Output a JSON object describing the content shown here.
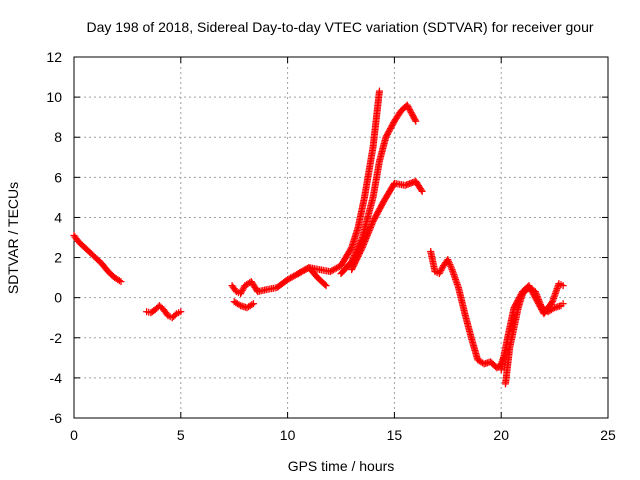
{
  "chart_data": {
    "type": "scatter",
    "title": "Day 198 of 2018, Sidereal Day-to-day VTEC variation (SDTVAR) for receiver gour",
    "xlabel": "GPS time / hours",
    "ylabel": "SDTVAR / TECUs",
    "xlim": [
      0,
      25
    ],
    "ylim": [
      -6,
      12
    ],
    "xticks": [
      0,
      5,
      10,
      15,
      20,
      25
    ],
    "yticks": [
      -6,
      -4,
      -2,
      0,
      2,
      4,
      6,
      8,
      10,
      12
    ],
    "grid": true,
    "marker": "+",
    "color": "#ff0000",
    "series": [
      {
        "name": "SDTVAR",
        "segments": [
          {
            "x": [
              0.0,
              0.2,
              0.5,
              0.8,
              1.0,
              1.3,
              1.6,
              1.9,
              2.2
            ],
            "y": [
              3.1,
              2.8,
              2.5,
              2.2,
              2.0,
              1.7,
              1.3,
              1.0,
              0.8
            ]
          },
          {
            "x": [
              3.4,
              3.6,
              3.8,
              4.0,
              4.2,
              4.4,
              4.6,
              4.8,
              5.0
            ],
            "y": [
              -0.7,
              -0.75,
              -0.6,
              -0.4,
              -0.6,
              -0.9,
              -1.0,
              -0.8,
              -0.7
            ]
          },
          {
            "x": [
              7.4,
              7.6,
              7.8,
              8.0,
              8.3,
              8.6,
              9.0,
              9.5,
              10.0,
              10.5,
              11.0,
              11.5,
              12.0,
              12.5,
              13.0,
              13.3,
              13.6,
              14.0,
              14.3
            ],
            "y": [
              0.6,
              0.3,
              0.2,
              0.6,
              0.8,
              0.3,
              0.4,
              0.5,
              0.9,
              1.2,
              1.5,
              1.4,
              1.3,
              1.6,
              2.5,
              3.5,
              5.0,
              7.5,
              10.3
            ]
          },
          {
            "x": [
              7.5,
              7.8,
              8.1,
              8.4
            ],
            "y": [
              -0.2,
              -0.4,
              -0.5,
              -0.3
            ]
          },
          {
            "x": [
              10.5,
              11.0,
              11.4,
              11.8
            ],
            "y": [
              1.2,
              1.5,
              1.0,
              0.6
            ]
          },
          {
            "x": [
              12.5,
              13.0,
              13.5,
              14.0,
              14.3,
              14.6,
              15.0,
              15.3,
              15.6,
              16.0
            ],
            "y": [
              1.2,
              1.8,
              3.0,
              5.0,
              6.8,
              8.0,
              8.8,
              9.3,
              9.6,
              8.8
            ]
          },
          {
            "x": [
              13.0,
              13.5,
              14.0,
              14.5,
              15.0,
              15.5,
              16.0,
              16.3
            ],
            "y": [
              1.4,
              2.5,
              3.8,
              4.8,
              5.7,
              5.6,
              5.8,
              5.3
            ]
          },
          {
            "x": [
              16.7,
              16.9,
              17.1,
              17.3,
              17.5,
              17.7,
              18.0,
              18.3,
              18.6,
              18.9,
              19.2,
              19.5,
              19.8,
              20.0,
              20.1
            ],
            "y": [
              2.3,
              1.3,
              1.2,
              1.6,
              1.9,
              1.4,
              0.5,
              -0.8,
              -2.0,
              -3.1,
              -3.3,
              -3.2,
              -3.5,
              -3.3,
              -3.0
            ]
          },
          {
            "x": [
              20.2,
              20.4,
              20.6,
              20.8,
              21.0,
              21.3,
              21.6,
              21.9,
              22.2,
              22.5,
              22.8,
              22.9
            ],
            "y": [
              -4.3,
              -2.5,
              -1.5,
              -0.5,
              0.2,
              0.5,
              0.3,
              -0.5,
              -0.7,
              -0.5,
              -0.4,
              -0.3
            ]
          },
          {
            "x": [
              20.0,
              20.3,
              20.6,
              21.0,
              21.3,
              21.6,
              22.0,
              22.4,
              22.7,
              22.9
            ],
            "y": [
              -3.6,
              -2.0,
              -0.5,
              0.3,
              0.6,
              0.0,
              -0.8,
              -0.2,
              0.7,
              0.6
            ]
          }
        ]
      }
    ]
  }
}
